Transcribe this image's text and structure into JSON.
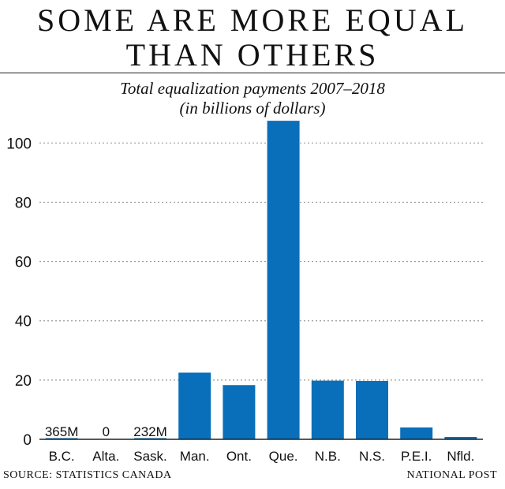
{
  "headline": [
    "SOME ARE MORE EQUAL",
    "THAN OTHERS"
  ],
  "footer": {
    "source": "SOURCE: STATISTICS CANADA",
    "credit": "NATIONAL POST"
  },
  "colors": {
    "bar": "#0a6fba",
    "grid": "#9a9a9a",
    "axis": "#222222"
  },
  "chart_data": {
    "type": "bar",
    "title": "Total equalization payments 2007–2018",
    "subtitle": "(in billions of dollars)",
    "xlabel": "",
    "ylabel": "",
    "ylim": [
      0,
      107
    ],
    "yticks": [
      0,
      20,
      40,
      60,
      80,
      100
    ],
    "grid": true,
    "legend": "none",
    "categories": [
      "B.C.",
      "Alta.",
      "Sask.",
      "Man.",
      "Ont.",
      "Que.",
      "N.B.",
      "N.S.",
      "P.E.I.",
      "Nfld."
    ],
    "values": [
      0.365,
      0,
      0.232,
      22.5,
      18.3,
      107.5,
      19.8,
      19.7,
      4.0,
      0.8
    ],
    "data_labels": [
      "365M",
      "0",
      "232M",
      "",
      "",
      "",
      "",
      "",
      "",
      ""
    ]
  }
}
